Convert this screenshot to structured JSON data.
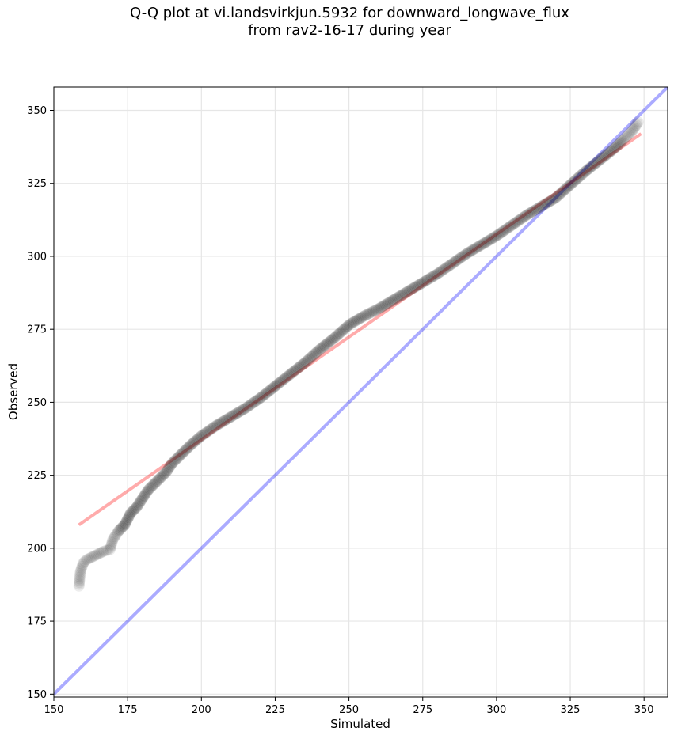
{
  "chart_data": {
    "type": "scatter",
    "title_line1": "Q-Q plot at vi.landsvirkjun.5932 for downward_longwave_flux",
    "title_line2": "from rav2-16-17 during year",
    "xlabel": "Simulated",
    "ylabel": "Observed",
    "xlim": [
      150,
      358
    ],
    "ylim": [
      149,
      358
    ],
    "xticks": [
      150,
      175,
      200,
      225,
      250,
      275,
      300,
      325,
      350
    ],
    "yticks": [
      150,
      175,
      200,
      225,
      250,
      275,
      300,
      325,
      350
    ],
    "grid": true,
    "colors": {
      "points": "#000000",
      "fit_line": "#ff0000",
      "one_to_one": "#0000ff"
    },
    "quantile_curve": {
      "x": [
        158.5,
        159,
        160,
        161,
        163,
        165,
        167,
        169,
        170,
        172,
        174,
        176,
        178,
        180,
        182,
        185,
        188,
        190,
        193,
        196,
        200,
        205,
        210,
        215,
        220,
        225,
        230,
        235,
        240,
        245,
        250,
        255,
        260,
        265,
        270,
        275,
        280,
        285,
        290,
        295,
        300,
        305,
        310,
        315,
        320,
        325,
        330,
        335,
        340,
        343,
        346,
        348
      ],
      "y": [
        187,
        192,
        195,
        196,
        197,
        198,
        199,
        199.5,
        203,
        206,
        208,
        212,
        214,
        217,
        220,
        223,
        226,
        229,
        232,
        235,
        238.5,
        242,
        245,
        248,
        251.5,
        255.5,
        259.5,
        263.5,
        268,
        272,
        276.5,
        279.5,
        282,
        285,
        288,
        291,
        294,
        297.5,
        301,
        304,
        307,
        310.5,
        314,
        317,
        320,
        324.5,
        329,
        333,
        337,
        340,
        343,
        346
      ]
    },
    "fit_line": {
      "x": [
        158.5,
        349
      ],
      "y": [
        208,
        342
      ]
    },
    "one_to_one_line": {
      "x": [
        150,
        358
      ],
      "y": [
        150,
        358
      ]
    }
  }
}
